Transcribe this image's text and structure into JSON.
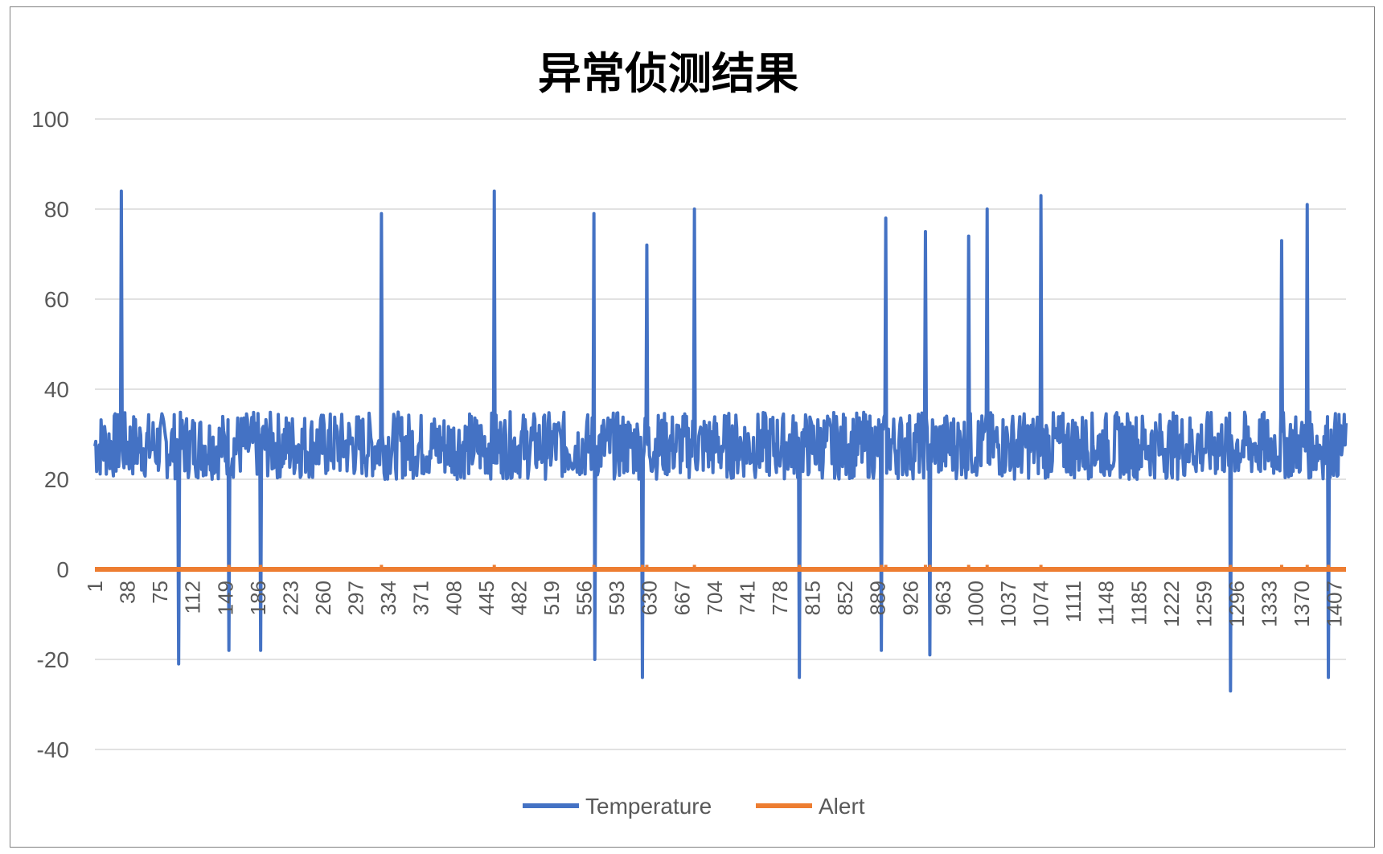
{
  "chart_data": {
    "type": "line",
    "title": "异常侦测结果",
    "xlabel": "",
    "ylabel": "",
    "ylim": [
      -40,
      100
    ],
    "y_ticks": [
      100,
      80,
      60,
      40,
      20,
      0,
      -20,
      -40
    ],
    "x_range": [
      1,
      1420
    ],
    "x_tick_labels": [
      "1",
      "38",
      "75",
      "112",
      "149",
      "186",
      "223",
      "260",
      "297",
      "334",
      "371",
      "408",
      "445",
      "482",
      "519",
      "556",
      "593",
      "630",
      "667",
      "704",
      "741",
      "778",
      "815",
      "852",
      "889",
      "926",
      "963",
      "1000",
      "1037",
      "1074",
      "1111",
      "1148",
      "1185",
      "1222",
      "1259",
      "1296",
      "1333",
      "1370",
      "1407"
    ],
    "grid": true,
    "legend_position": "bottom",
    "baseline_band": [
      20,
      35
    ],
    "series": [
      {
        "name": "Temperature",
        "color": "#4472C4",
        "spikes_high": [
          {
            "x": 31,
            "y": 84
          },
          {
            "x": 326,
            "y": 79
          },
          {
            "x": 454,
            "y": 84
          },
          {
            "x": 567,
            "y": 79
          },
          {
            "x": 627,
            "y": 72
          },
          {
            "x": 681,
            "y": 80
          },
          {
            "x": 898,
            "y": 78
          },
          {
            "x": 943,
            "y": 75
          },
          {
            "x": 992,
            "y": 74
          },
          {
            "x": 1013,
            "y": 80
          },
          {
            "x": 1074,
            "y": 83
          },
          {
            "x": 1347,
            "y": 73
          },
          {
            "x": 1376,
            "y": 81
          }
        ],
        "spikes_low": [
          {
            "x": 96,
            "y": -21
          },
          {
            "x": 153,
            "y": -18
          },
          {
            "x": 189,
            "y": -18
          },
          {
            "x": 567,
            "y": -20
          },
          {
            "x": 622,
            "y": -24
          },
          {
            "x": 800,
            "y": -24
          },
          {
            "x": 893,
            "y": -18
          },
          {
            "x": 948,
            "y": -19
          },
          {
            "x": 1289,
            "y": -27
          },
          {
            "x": 1400,
            "y": -24
          }
        ]
      },
      {
        "name": "Alert",
        "color": "#ED7D31",
        "baseline": 0,
        "marker_x": [
          153,
          189,
          326,
          454,
          567,
          622,
          627,
          681,
          800,
          893,
          898,
          943,
          948,
          992,
          1013,
          1074,
          1289,
          1347,
          1376,
          1400
        ],
        "marker_value": 1
      }
    ]
  }
}
